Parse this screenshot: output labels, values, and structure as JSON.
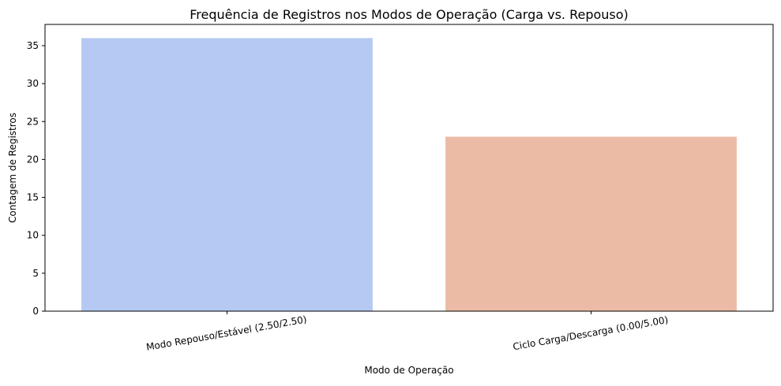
{
  "chart_data": {
    "type": "bar",
    "title": "Frequência de Registros nos Modos de Operação (Carga vs. Repouso)",
    "xlabel": "Modo de Operação",
    "ylabel": "Contagem de Registros",
    "categories": [
      "Modo Repouso/Estável (2.50/2.50)",
      "Ciclo Carga/Descarga (0.00/5.00)"
    ],
    "values": [
      36,
      23
    ],
    "colors": [
      "#b5c9f2",
      "#ebbba5"
    ],
    "ylim": [
      0,
      37.8
    ],
    "yticks": [
      0,
      5,
      10,
      15,
      20,
      25,
      30,
      35
    ],
    "ytick_labels": [
      "0",
      "5",
      "10",
      "15",
      "20",
      "25",
      "30",
      "35"
    ],
    "xtick_rotation_deg": -10,
    "grid": false
  }
}
